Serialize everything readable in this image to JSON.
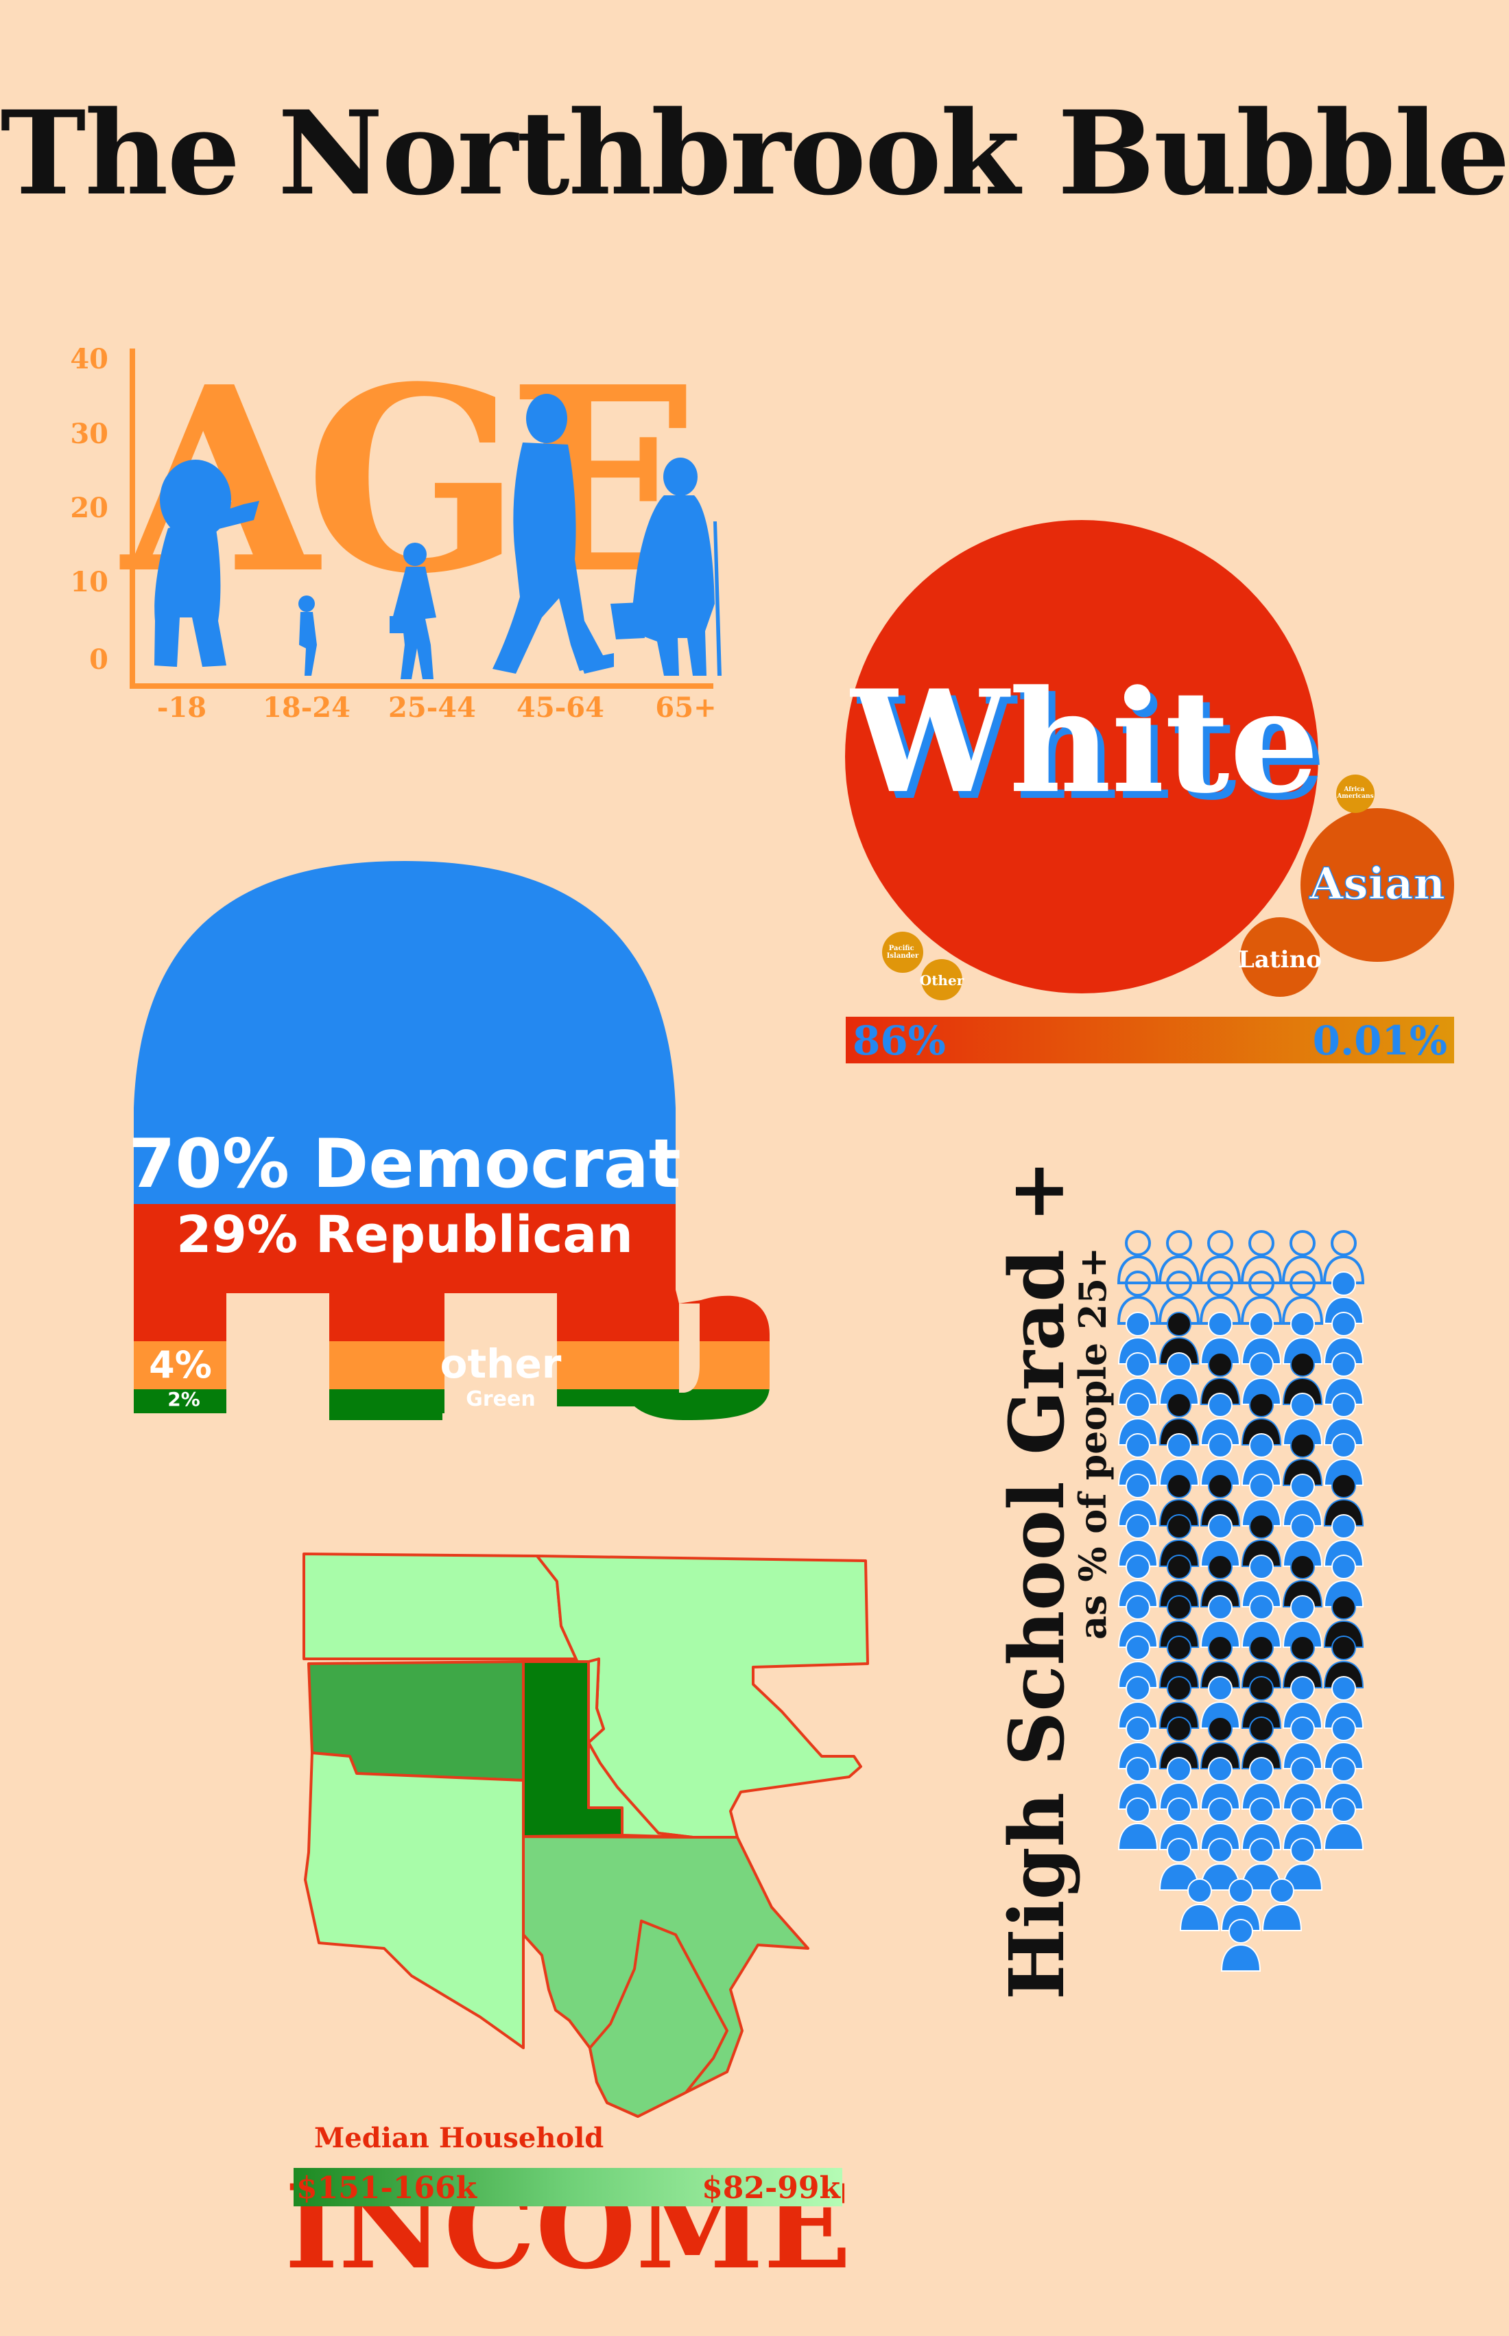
{
  "title": "The Northbrook Bubble",
  "colors": {
    "background": "#fddcbb",
    "orange": "#ff9433",
    "blue": "#2488f0",
    "red": "#e62a0a",
    "green_dark": "#047d0a",
    "green_mid": "#3ea847",
    "green_soft": "#78d67e",
    "green_light": "#a8fca9",
    "black": "#111111"
  },
  "age": {
    "word": "AGE",
    "y_ticks": [
      "40",
      "30",
      "20",
      "10",
      "0"
    ],
    "categories": [
      "-18",
      "18-24",
      "25-44",
      "45-64",
      "65+"
    ],
    "values": [
      30,
      8,
      18,
      36,
      28
    ]
  },
  "race": {
    "main_label": "White",
    "bubbles": [
      {
        "label": "Asian",
        "size": "medium"
      },
      {
        "label": "Latino",
        "size": "small"
      },
      {
        "label": "African Americans",
        "size": "tiny"
      },
      {
        "label": "Pacific Islander",
        "size": "tiny"
      },
      {
        "label": "Other",
        "size": "tiny"
      }
    ],
    "scale_high": "86%",
    "scale_low": "0.01%"
  },
  "politics": {
    "democrat": "70% Democrat",
    "republican": "29% Republican",
    "pct_4": "4%",
    "other": "other",
    "pct_2": "2%",
    "green": "Green",
    "shares": {
      "democrat": 70,
      "republican": 29,
      "other": 4,
      "green": 2
    }
  },
  "education": {
    "title": "High School Grad +",
    "subtitle": "as % of people 25+"
  },
  "income": {
    "label_small": "Median Household",
    "label_big": "INCOME",
    "scale_high": "$151-166k",
    "scale_low": "$82-99k"
  }
}
